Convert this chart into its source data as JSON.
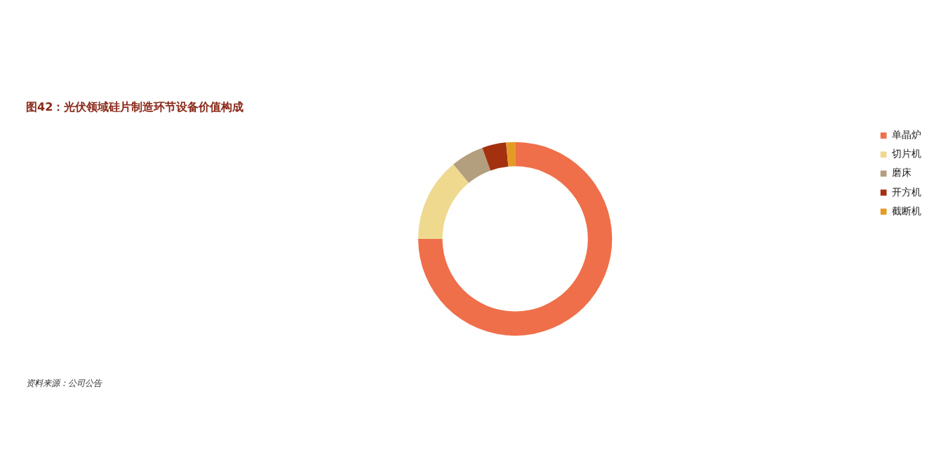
{
  "chart_data": {
    "type": "donut",
    "title": "图42：光伏领域硅片制造环节设备价值构成",
    "categories": [
      "单晶炉",
      "切片机",
      "磨床",
      "开方机",
      "截断机"
    ],
    "values": [
      75,
      14,
      5.5,
      4,
      1.5
    ],
    "colors": [
      "#ef6f4a",
      "#efd98f",
      "#b39e7e",
      "#a3300f",
      "#e69a26"
    ],
    "legend": "right",
    "annotations": [
      "资料来源：公司公告"
    ]
  }
}
